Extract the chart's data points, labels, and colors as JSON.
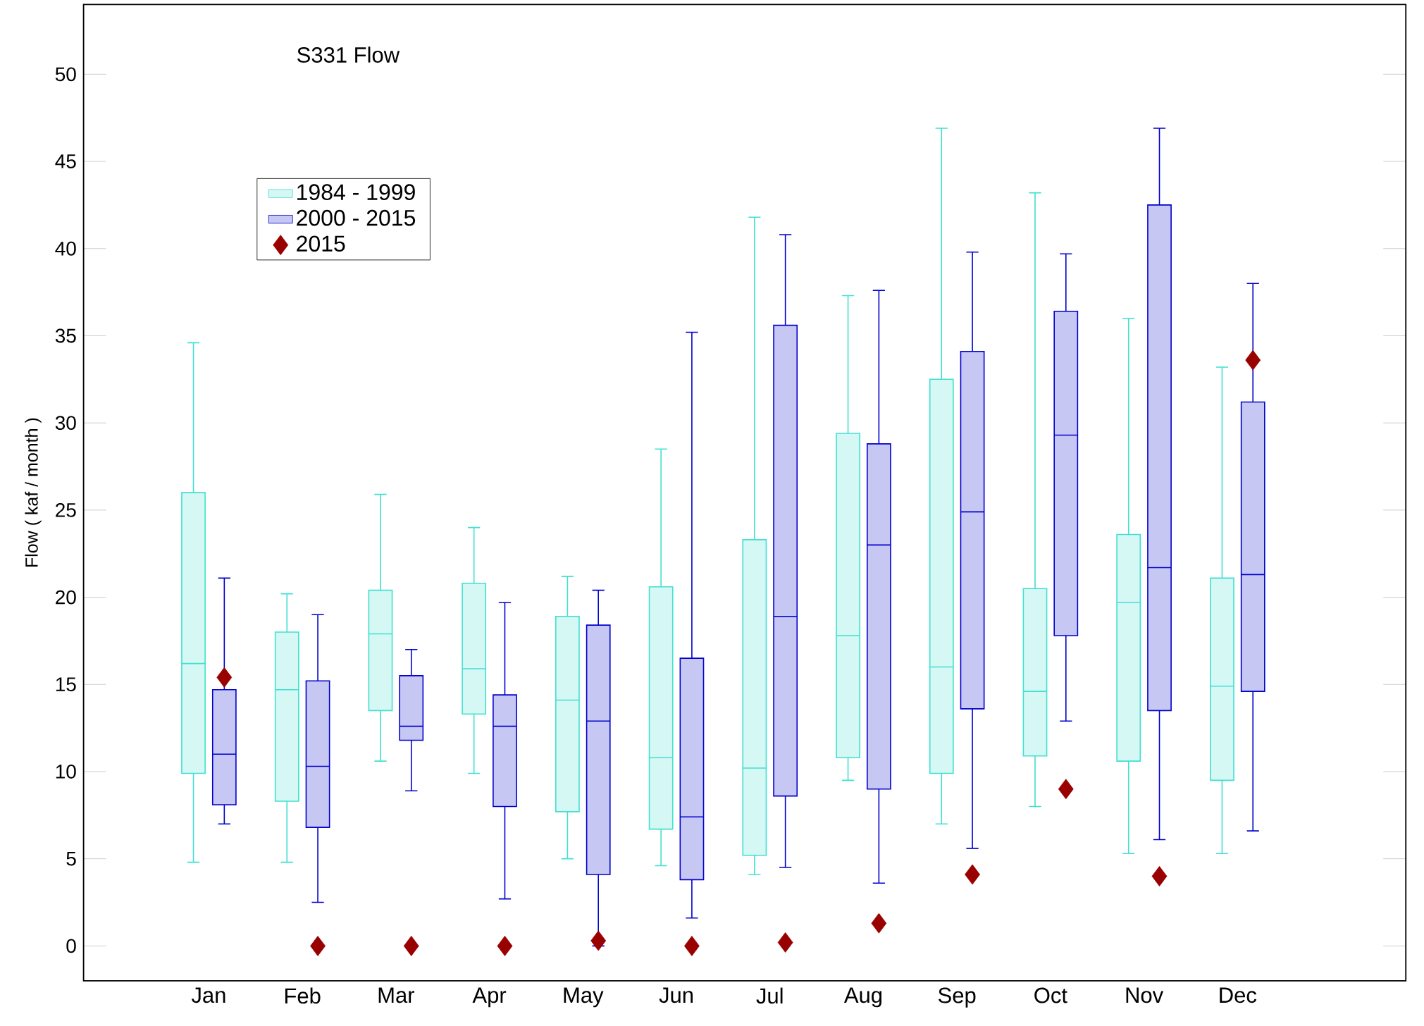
{
  "chart_data": {
    "type": "box",
    "title": "S331 Flow",
    "ylabel": "Flow ( kaf / month )",
    "categories": [
      "Jan",
      "Feb",
      "Mar",
      "Apr",
      "May",
      "Jun",
      "Jul",
      "Aug",
      "Sep",
      "Oct",
      "Nov",
      "Dec"
    ],
    "ylim": [
      -2,
      54
    ],
    "yticks": [
      0,
      5,
      10,
      15,
      20,
      25,
      30,
      35,
      40,
      45,
      50
    ],
    "legend": "top left",
    "series": [
      {
        "name": "1984 - 1999",
        "color": "#40e0d0",
        "boxes": [
          {
            "low": 4.8,
            "q1": 9.9,
            "median": 16.2,
            "q3": 26.0,
            "high": 34.6
          },
          {
            "low": 4.8,
            "q1": 8.3,
            "median": 14.7,
            "q3": 18.0,
            "high": 20.2
          },
          {
            "low": 10.6,
            "q1": 13.5,
            "median": 17.9,
            "q3": 20.4,
            "high": 25.9
          },
          {
            "low": 9.9,
            "q1": 13.3,
            "median": 15.9,
            "q3": 20.8,
            "high": 24.0
          },
          {
            "low": 5.0,
            "q1": 7.7,
            "median": 14.1,
            "q3": 18.9,
            "high": 21.2
          },
          {
            "low": 4.6,
            "q1": 6.7,
            "median": 10.8,
            "q3": 20.6,
            "high": 28.5
          },
          {
            "low": 4.1,
            "q1": 5.2,
            "median": 10.2,
            "q3": 23.3,
            "high": 41.8
          },
          {
            "low": 9.5,
            "q1": 10.8,
            "median": 17.8,
            "q3": 29.4,
            "high": 37.3
          },
          {
            "low": 7.0,
            "q1": 9.9,
            "median": 16.0,
            "q3": 32.5,
            "high": 46.9
          },
          {
            "low": 8.0,
            "q1": 10.9,
            "median": 14.6,
            "q3": 20.5,
            "high": 43.2
          },
          {
            "low": 5.3,
            "q1": 10.6,
            "median": 19.7,
            "q3": 23.6,
            "high": 36.0
          },
          {
            "low": 5.3,
            "q1": 9.5,
            "median": 14.9,
            "q3": 21.1,
            "high": 33.2
          }
        ]
      },
      {
        "name": "2000 - 2015",
        "color": "#0000cd",
        "boxes": [
          {
            "low": 7.0,
            "q1": 8.1,
            "median": 11.0,
            "q3": 14.7,
            "high": 21.1
          },
          {
            "low": 2.5,
            "q1": 6.8,
            "median": 10.3,
            "q3": 15.2,
            "high": 19.0
          },
          {
            "low": 8.9,
            "q1": 11.8,
            "median": 12.6,
            "q3": 15.5,
            "high": 17.0
          },
          {
            "low": 2.7,
            "q1": 8.0,
            "median": 12.6,
            "q3": 14.4,
            "high": 19.7
          },
          {
            "low": 0,
            "q1": 4.1,
            "median": 12.9,
            "q3": 18.4,
            "high": 20.4
          },
          {
            "low": 1.6,
            "q1": 3.8,
            "median": 7.4,
            "q3": 16.5,
            "high": 35.2
          },
          {
            "low": 4.5,
            "q1": 8.6,
            "median": 18.9,
            "q3": 35.6,
            "high": 40.8
          },
          {
            "low": 3.6,
            "q1": 9.0,
            "median": 23.0,
            "q3": 28.8,
            "high": 37.6
          },
          {
            "low": 5.6,
            "q1": 13.6,
            "median": 24.9,
            "q3": 34.1,
            "high": 39.8
          },
          {
            "low": 12.9,
            "q1": 17.8,
            "median": 29.3,
            "q3": 36.4,
            "high": 39.7
          },
          {
            "low": 6.1,
            "q1": 13.5,
            "median": 21.7,
            "q3": 42.5,
            "high": 46.9
          },
          {
            "low": 6.6,
            "q1": 14.6,
            "median": 21.3,
            "q3": 31.2,
            "high": 38.0
          }
        ]
      },
      {
        "name": "2015",
        "type": "scatter",
        "marker": "diamond",
        "color": "#990000",
        "x": [
          "Jan",
          "Feb",
          "Mar",
          "Apr",
          "May",
          "Jun",
          "Jul",
          "Aug",
          "Sep",
          "Oct",
          "Nov",
          "Dec"
        ],
        "values": [
          15.4,
          0,
          0,
          0,
          0.3,
          0,
          0.2,
          1.3,
          4.1,
          9.0,
          4.0,
          33.6
        ]
      }
    ]
  }
}
